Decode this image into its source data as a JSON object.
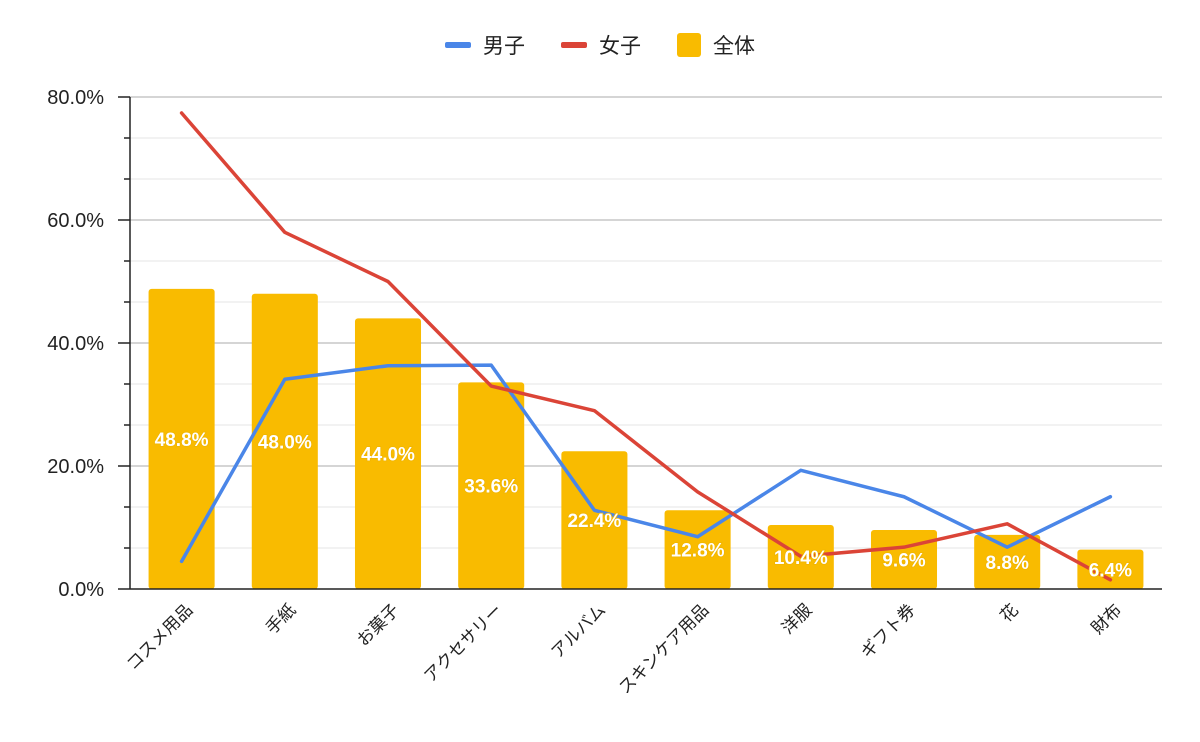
{
  "chart_data": {
    "type": "bar",
    "categories": [
      "コスメ用品",
      "手紙",
      "お菓子",
      "アクセサリー",
      "アルバム",
      "スキンケア用品",
      "洋服",
      "ギフト券",
      "花",
      "財布"
    ],
    "series": [
      {
        "name": "全体",
        "type": "bar",
        "color": "#f9bb00",
        "values": [
          48.8,
          48.0,
          44.0,
          33.6,
          22.4,
          12.8,
          10.4,
          9.6,
          8.8,
          6.4
        ]
      },
      {
        "name": "男子",
        "type": "line",
        "color": "#4a86e8",
        "values": [
          4.5,
          34.1,
          36.3,
          36.4,
          12.8,
          8.5,
          19.3,
          15.0,
          6.8,
          15.0
        ]
      },
      {
        "name": "女子",
        "type": "line",
        "color": "#db4437",
        "values": [
          77.4,
          58.0,
          50.0,
          33.0,
          29.0,
          15.8,
          5.3,
          6.8,
          10.6,
          1.5
        ]
      }
    ],
    "data_labels": [
      "48.8%",
      "48.0%",
      "44.0%",
      "33.6%",
      "22.4%",
      "12.8%",
      "10.4%",
      "9.6%",
      "8.8%",
      "6.4%"
    ],
    "y_ticks": [
      "0.0%",
      "20.0%",
      "40.0%",
      "60.0%",
      "80.0%"
    ],
    "ylim": [
      0,
      80
    ],
    "grid": true,
    "legend_position": "top",
    "title": "",
    "xlabel": "",
    "ylabel": ""
  }
}
